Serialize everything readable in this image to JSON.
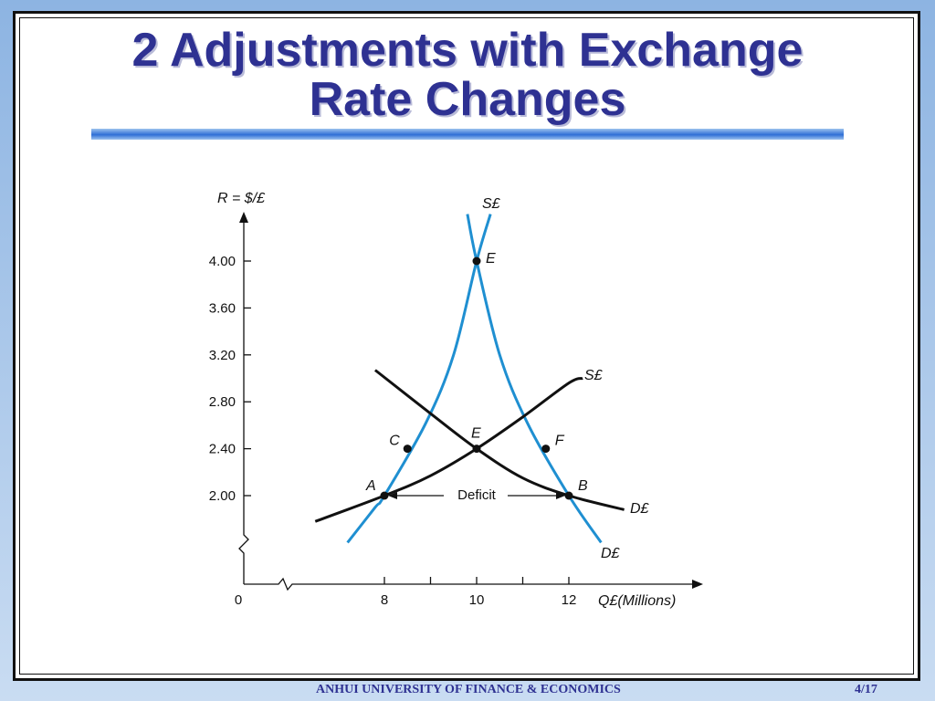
{
  "slide": {
    "title_line1": "2 Adjustments with Exchange",
    "title_line2": "Rate Changes",
    "footer_org": "ANHUI UNIVERSITY OF FINANCE & ECONOMICS",
    "footer_page": "4/17"
  },
  "colors": {
    "title": "#2e3192",
    "inelastic_curves": "#1f8fd1",
    "elastic_curves": "#111111"
  },
  "chart_data": {
    "type": "line",
    "ylabel": "R = $/£",
    "xlabel": "Q£(Millions)",
    "origin_label": "0",
    "xlim": [
      6.5,
      13.5
    ],
    "ylim": [
      1.2,
      4.6
    ],
    "x_ticks": [
      8,
      9,
      10,
      11,
      12
    ],
    "x_tick_labels": [
      "8",
      "10",
      "12"
    ],
    "x_tick_label_values": [
      8,
      10,
      12
    ],
    "y_ticks": [
      2.0,
      2.4,
      2.8,
      3.2,
      3.6,
      4.0
    ],
    "y_tick_labels": [
      "2.00",
      "2.40",
      "2.80",
      "3.20",
      "3.60",
      "4.00"
    ],
    "series": [
      {
        "name": "S£",
        "style": "blue",
        "x": [
          7.2,
          7.8,
          8.0,
          8.9,
          9.5,
          10.0,
          10.3
        ],
        "y": [
          1.6,
          1.9,
          2.0,
          2.62,
          3.2,
          4.0,
          4.4
        ]
      },
      {
        "name": "D£",
        "style": "blue",
        "x": [
          9.8,
          10.0,
          10.5,
          11.1,
          12.0,
          12.7
        ],
        "y": [
          4.4,
          4.0,
          3.2,
          2.62,
          2.0,
          1.6
        ]
      },
      {
        "name": "S£",
        "style": "black",
        "x": [
          6.5,
          8.0,
          9.0,
          10.0,
          11.0,
          12.0,
          12.3
        ],
        "y": [
          1.78,
          2.0,
          2.17,
          2.4,
          2.67,
          2.96,
          3.0
        ]
      },
      {
        "name": "D£",
        "style": "black",
        "x": [
          7.8,
          9.0,
          10.0,
          11.0,
          12.0,
          13.2
        ],
        "y": [
          3.07,
          2.7,
          2.4,
          2.15,
          2.0,
          1.88
        ]
      }
    ],
    "points": [
      {
        "label": "A",
        "x": 8.0,
        "y": 2.0
      },
      {
        "label": "B",
        "x": 12.0,
        "y": 2.0
      },
      {
        "label": "C",
        "x": 8.5,
        "y": 2.4
      },
      {
        "label": "E",
        "x": 10.0,
        "y": 2.4
      },
      {
        "label": "F",
        "x": 11.5,
        "y": 2.4
      },
      {
        "label": "E",
        "x": 10.0,
        "y": 4.0
      }
    ],
    "annotations": [
      {
        "text": "Deficit",
        "from_x": 8.0,
        "to_x": 12.0,
        "y": 2.0
      }
    ]
  }
}
